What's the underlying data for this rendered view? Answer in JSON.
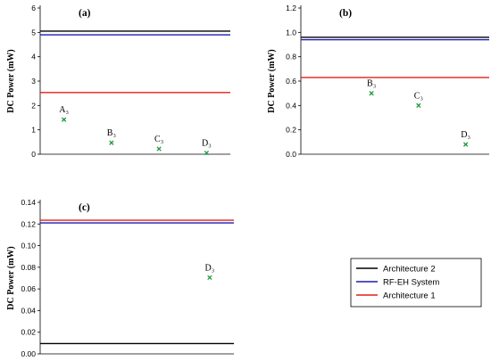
{
  "legend": {
    "placement": "bottom-right",
    "items": [
      {
        "label": "Architecture 2",
        "color": "#000000"
      },
      {
        "label": "RF-EH System",
        "color": "#1c1cb0"
      },
      {
        "label": "Architecture 1",
        "color": "#e0201a"
      }
    ]
  },
  "chart_data": [
    {
      "type": "line",
      "panel_label": "(a)",
      "ylabel": "DC Power (mW)",
      "xlabel": "",
      "ylim": [
        0,
        6
      ],
      "yticks": [
        "0",
        "1",
        "2",
        "3",
        "4",
        "5",
        "6"
      ],
      "grid": false,
      "series": [
        {
          "name": "Architecture 2",
          "y": 5.05
        },
        {
          "name": "RF-EH System",
          "y": 4.9
        },
        {
          "name": "Architecture 1",
          "y": 2.53
        }
      ],
      "points": [
        {
          "label": "A₃",
          "x": 1,
          "y": 1.42
        },
        {
          "label": "B₃",
          "x": 2,
          "y": 0.47
        },
        {
          "label": "C₃",
          "x": 3,
          "y": 0.22
        },
        {
          "label": "D₃",
          "x": 4,
          "y": 0.05
        }
      ]
    },
    {
      "type": "line",
      "panel_label": "(b)",
      "ylabel": "DC Power (mW)",
      "xlabel": "",
      "ylim": [
        0,
        1.2
      ],
      "yticks": [
        "0.0",
        "0.2",
        "0.4",
        "0.6",
        "0.8",
        "1.0",
        "1.2"
      ],
      "grid": false,
      "series": [
        {
          "name": "Architecture 2",
          "y": 0.96
        },
        {
          "name": "RF-EH System",
          "y": 0.94
        },
        {
          "name": "Architecture 1",
          "y": 0.63
        }
      ],
      "points": [
        {
          "label": "B₃",
          "x": 2,
          "y": 0.5
        },
        {
          "label": "C₃",
          "x": 3,
          "y": 0.4
        },
        {
          "label": "D₃",
          "x": 4,
          "y": 0.08
        }
      ]
    },
    {
      "type": "line",
      "panel_label": "(c)",
      "ylabel": "DC Power (mW)",
      "xlabel": "",
      "ylim": [
        0,
        0.14
      ],
      "yticks": [
        "0.00",
        "0.02",
        "0.04",
        "0.06",
        "0.08",
        "0.10",
        "0.12",
        "0.14"
      ],
      "grid": false,
      "series": [
        {
          "name": "Architecture 2",
          "y": 0.0095
        },
        {
          "name": "RF-EH System",
          "y": 0.121
        },
        {
          "name": "Architecture 1",
          "y": 0.1235
        }
      ],
      "points": [
        {
          "label": "D₃",
          "x": 4,
          "y": 0.0705
        }
      ]
    }
  ]
}
